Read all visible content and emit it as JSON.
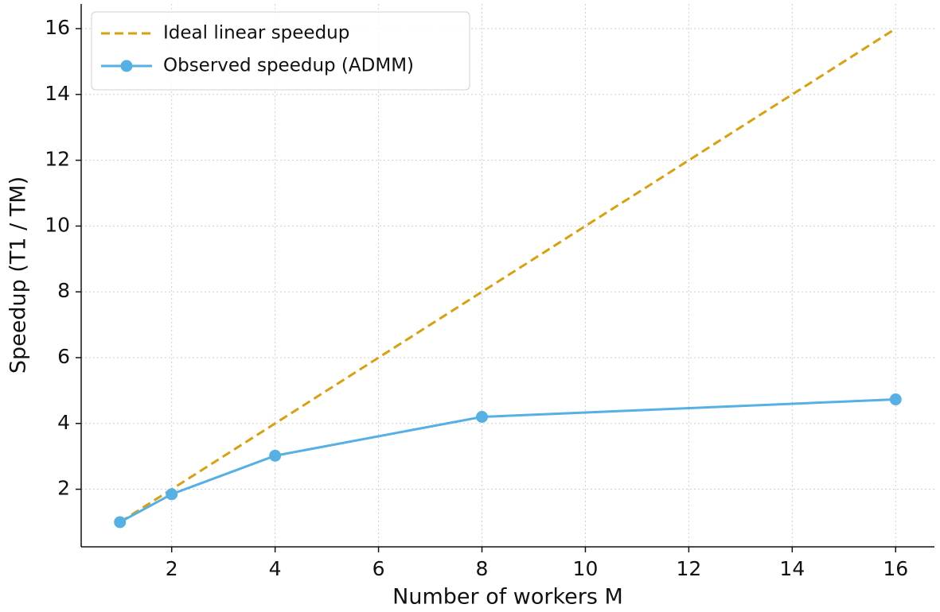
{
  "chart_data": {
    "type": "line",
    "x_label": "Number of workers M",
    "y_label": "Speedup (T1 / TM)",
    "x": [
      1,
      2,
      4,
      8,
      16
    ],
    "series": [
      {
        "name": "Ideal linear speedup",
        "color": "#d9a010",
        "linestyle": "dashed",
        "marker": "none",
        "values": [
          1,
          2,
          4,
          8,
          16
        ]
      },
      {
        "name": "Observed speedup (ADMM)",
        "color": "#56b0e4",
        "linestyle": "solid",
        "marker": "circle",
        "values": [
          1.0,
          1.85,
          3.02,
          4.2,
          4.73
        ]
      }
    ],
    "xlim": [
      0.25,
      16.75
    ],
    "xticks": [
      2,
      4,
      6,
      8,
      10,
      12,
      14,
      16
    ],
    "ylim": [
      0.25,
      16.75
    ],
    "yticks": [
      2,
      4,
      6,
      8,
      10,
      12,
      14,
      16
    ],
    "grid": true,
    "legend": "upper-left"
  }
}
